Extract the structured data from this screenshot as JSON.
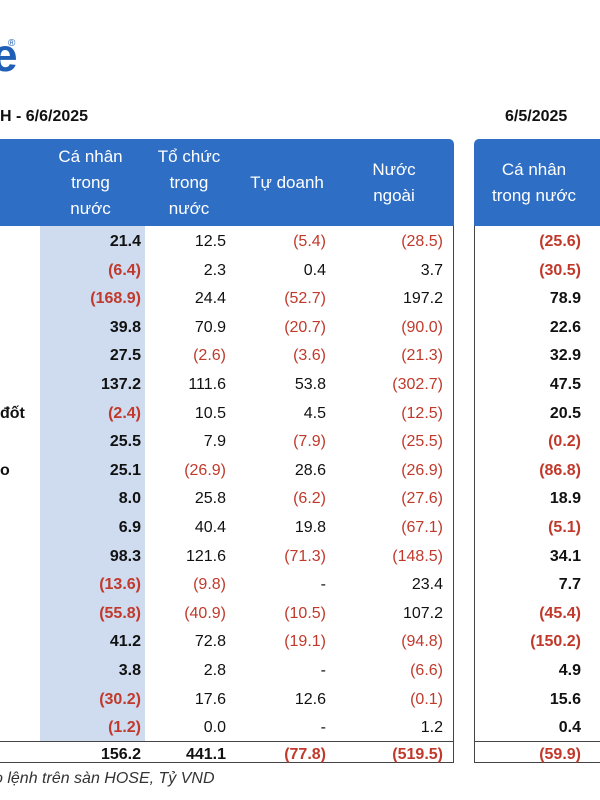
{
  "brand": {
    "logo_text": "e",
    "reg_mark": "®"
  },
  "dates": {
    "left": "H - 6/6/2025",
    "right": "6/5/2025"
  },
  "headers": {
    "left": [
      "Cá nhân\ntrong\nnước",
      "Tổ chức\ntrong\nnước",
      "Tự doanh",
      "Nước\nngoài"
    ],
    "right": [
      "Cá nhân\ntrong nước"
    ]
  },
  "rows": [
    {
      "label": "",
      "v": [
        "21.4",
        "12.5",
        "(5.4)",
        "(28.5)",
        "(25.6)"
      ]
    },
    {
      "label": "",
      "v": [
        "(6.4)",
        "2.3",
        "0.4",
        "3.7",
        "(30.5)"
      ]
    },
    {
      "label": "",
      "v": [
        "(168.9)",
        "24.4",
        "(52.7)",
        "197.2",
        "78.9"
      ]
    },
    {
      "label": "",
      "v": [
        "39.8",
        "70.9",
        "(20.7)",
        "(90.0)",
        "22.6"
      ]
    },
    {
      "label": "",
      "v": [
        "27.5",
        "(2.6)",
        "(3.6)",
        "(21.3)",
        "32.9"
      ]
    },
    {
      "label": "",
      "v": [
        "137.2",
        "111.6",
        "53.8",
        "(302.7)",
        "47.5"
      ]
    },
    {
      "label": "đốt",
      "v": [
        "(2.4)",
        "10.5",
        "4.5",
        "(12.5)",
        "20.5"
      ]
    },
    {
      "label": "",
      "v": [
        "25.5",
        "7.9",
        "(7.9)",
        "(25.5)",
        "(0.2)"
      ]
    },
    {
      "label": "o",
      "v": [
        "25.1",
        "(26.9)",
        "28.6",
        "(26.9)",
        "(86.8)"
      ]
    },
    {
      "label": "",
      "v": [
        "8.0",
        "25.8",
        "(6.2)",
        "(27.6)",
        "18.9"
      ]
    },
    {
      "label": "",
      "v": [
        "6.9",
        "40.4",
        "19.8",
        "(67.1)",
        "(5.1)"
      ]
    },
    {
      "label": "",
      "v": [
        "98.3",
        "121.6",
        "(71.3)",
        "(148.5)",
        "34.1"
      ]
    },
    {
      "label": "",
      "v": [
        "(13.6)",
        "(9.8)",
        "-",
        "23.4",
        "7.7"
      ]
    },
    {
      "label": "",
      "v": [
        "(55.8)",
        "(40.9)",
        "(10.5)",
        "107.2",
        "(45.4)"
      ]
    },
    {
      "label": "",
      "v": [
        "41.2",
        "72.8",
        "(19.1)",
        "(94.8)",
        "(150.2)"
      ]
    },
    {
      "label": "",
      "v": [
        "3.8",
        "2.8",
        "-",
        "(6.6)",
        "4.9"
      ]
    },
    {
      "label": "",
      "v": [
        "(30.2)",
        "17.6",
        "12.6",
        "(0.1)",
        "15.6"
      ]
    },
    {
      "label": "",
      "v": [
        "(1.2)",
        "0.0",
        "-",
        "1.2",
        "0.4"
      ]
    }
  ],
  "total": [
    "156.2",
    "441.1",
    "(77.8)",
    "(519.5)",
    "(59.9)"
  ],
  "footnote": "o lệnh trên sàn HOSE, Tỷ VND",
  "colors": {
    "header_bg": "#2e6fc5",
    "negative": "#c0392b",
    "highlight": "#cfdcf0"
  }
}
